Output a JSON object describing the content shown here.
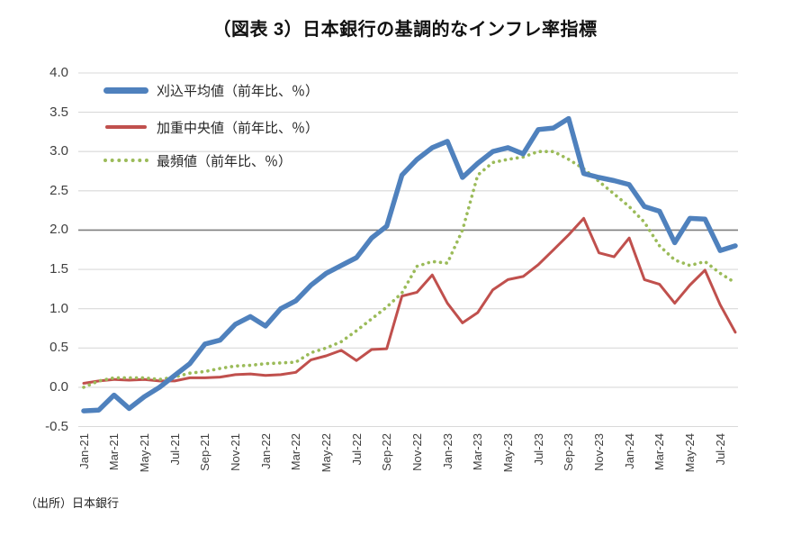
{
  "page": {
    "title": "（図表 3）日本銀行の基調的なインフレ率指標",
    "source_note": "（出所）日本銀行"
  },
  "colors": {
    "trimmed_mean": "#4F81BD",
    "weighted_median": "#C0504D",
    "mode": "#9BBB59",
    "grid": "#D9D9D9",
    "emphasized_grid": "#7F7F7F",
    "axis_text": "#3F3F3F"
  },
  "legend": {
    "items": [
      {
        "label": "刈込平均値（前年比、％）",
        "key": "trimmed_mean",
        "swatch": "thick-line"
      },
      {
        "label": "加重中央値（前年比、％）",
        "key": "weighted_median",
        "swatch": "thin-line"
      },
      {
        "label": "最頻値（前年比、％）",
        "key": "mode",
        "swatch": "dotted-line"
      }
    ]
  },
  "chart_data": {
    "type": "line",
    "title": "（図表 3）日本銀行の基調的なインフレ率指標",
    "xlabel": "",
    "ylabel": "",
    "ylim": [
      -0.5,
      4.0
    ],
    "grid": true,
    "legend_position": "top-left",
    "emphasized_gridline": 2.0,
    "y_tick_labels": [
      "4.0",
      "3.5",
      "3.0",
      "2.5",
      "2.0",
      "1.5",
      "1.0",
      "0.5",
      "0.0",
      "-0.5"
    ],
    "x": [
      "Jan-21",
      "Feb-21",
      "Mar-21",
      "Apr-21",
      "May-21",
      "Jun-21",
      "Jul-21",
      "Aug-21",
      "Sep-21",
      "Oct-21",
      "Nov-21",
      "Dec-21",
      "Jan-22",
      "Feb-22",
      "Mar-22",
      "Apr-22",
      "May-22",
      "Jun-22",
      "Jul-22",
      "Aug-22",
      "Sep-22",
      "Oct-22",
      "Nov-22",
      "Dec-22",
      "Jan-23",
      "Feb-23",
      "Mar-23",
      "Apr-23",
      "May-23",
      "Jun-23",
      "Jul-23",
      "Aug-23",
      "Sep-23",
      "Oct-23",
      "Nov-23",
      "Dec-23",
      "Jan-24",
      "Feb-24",
      "Mar-24",
      "Apr-24",
      "May-24",
      "Jun-24",
      "Jul-24",
      "Aug-24"
    ],
    "x_tick_labels": [
      "Jan-21",
      "Mar-21",
      "May-21",
      "Jul-21",
      "Sep-21",
      "Nov-21",
      "Jan-22",
      "Mar-22",
      "May-22",
      "Jul-22",
      "Sep-22",
      "Nov-22",
      "Jan-23",
      "Mar-23",
      "May-23",
      "Jul-23",
      "Sep-23",
      "Nov-23",
      "Jan-24",
      "Mar-24",
      "May-24",
      "Jul-24"
    ],
    "series": [
      {
        "name": "刈込平均値（前年比、％）",
        "key": "trimmed_mean",
        "style": "solid",
        "width": 5.5,
        "values": [
          -0.3,
          -0.29,
          -0.1,
          -0.27,
          -0.12,
          0.0,
          0.15,
          0.3,
          0.55,
          0.6,
          0.8,
          0.9,
          0.78,
          1.0,
          1.1,
          1.3,
          1.45,
          1.55,
          1.65,
          1.9,
          2.05,
          2.7,
          2.9,
          3.05,
          3.13,
          2.67,
          2.85,
          3.0,
          3.05,
          2.97,
          3.28,
          3.3,
          3.42,
          2.72,
          2.67,
          2.63,
          2.58,
          2.3,
          2.24,
          1.84,
          2.15,
          2.14,
          1.74,
          1.8
        ]
      },
      {
        "name": "加重中央値（前年比、％）",
        "key": "weighted_median",
        "style": "solid",
        "width": 3,
        "values": [
          0.05,
          0.08,
          0.1,
          0.09,
          0.1,
          0.08,
          0.08,
          0.12,
          0.12,
          0.13,
          0.16,
          0.17,
          0.15,
          0.16,
          0.19,
          0.35,
          0.4,
          0.47,
          0.34,
          0.48,
          0.49,
          1.16,
          1.21,
          1.43,
          1.07,
          0.82,
          0.95,
          1.24,
          1.37,
          1.41,
          1.56,
          1.75,
          1.94,
          2.15,
          1.71,
          1.66,
          1.9,
          1.37,
          1.31,
          1.07,
          1.3,
          1.49,
          1.05,
          0.7
        ]
      },
      {
        "name": "最頻値（前年比、％）",
        "key": "mode",
        "style": "dotted",
        "width": 3.6,
        "values": [
          0.0,
          0.08,
          0.12,
          0.12,
          0.12,
          0.1,
          0.13,
          0.18,
          0.2,
          0.24,
          0.27,
          0.28,
          0.3,
          0.31,
          0.32,
          0.44,
          0.5,
          0.58,
          0.72,
          0.87,
          1.02,
          1.2,
          1.54,
          1.6,
          1.58,
          2.0,
          2.7,
          2.86,
          2.9,
          2.93,
          3.0,
          3.0,
          2.9,
          2.78,
          2.62,
          2.46,
          2.3,
          2.1,
          1.8,
          1.62,
          1.55,
          1.6,
          1.45,
          1.33
        ]
      }
    ]
  }
}
